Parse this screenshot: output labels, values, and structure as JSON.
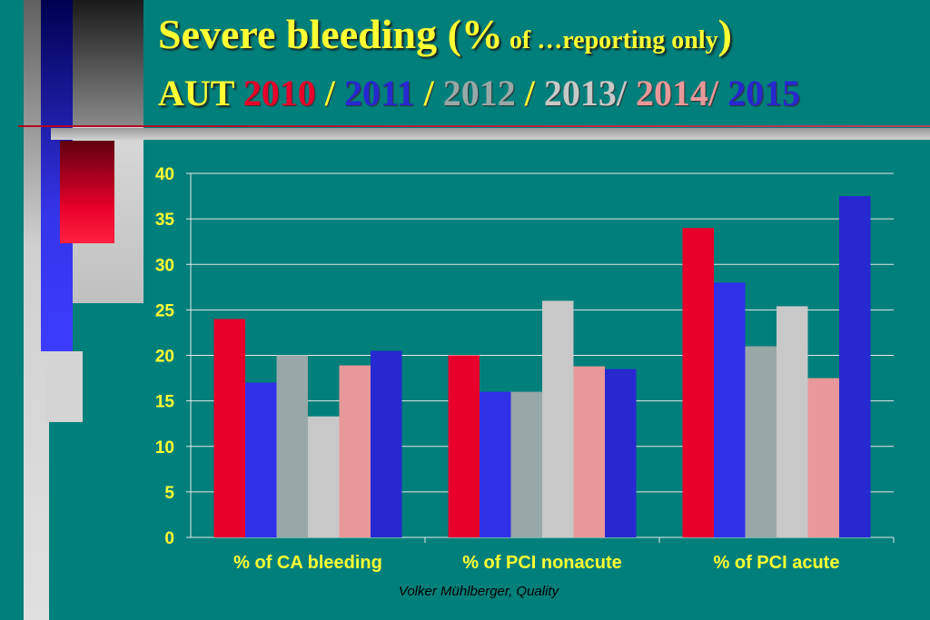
{
  "title": {
    "line1_main": "Severe  bleeding (%",
    "line1_small": " of …reporting only",
    "line1_close": ")",
    "line2_prefix": "AUT ",
    "years": [
      {
        "label": "2010",
        "color": "#e8002a"
      },
      {
        "label": " / ",
        "color": "#ffff33"
      },
      {
        "label": "2011",
        "color": "#2828d0"
      },
      {
        "label": " / ",
        "color": "#ffff33"
      },
      {
        "label": "2012",
        "color": "#98a8a8"
      },
      {
        "label": " / ",
        "color": "#ffff33"
      },
      {
        "label": "2013/",
        "color": "#c8c8c8"
      },
      {
        "label": " ",
        "color": "#ffff33"
      },
      {
        "label": "2014/",
        "color": "#e89898"
      },
      {
        "label": " ",
        "color": "#ffff33"
      },
      {
        "label": "2015",
        "color": "#2828d0"
      }
    ]
  },
  "footer": "Volker Mühlberger, Quality",
  "chart_data": {
    "type": "bar",
    "title": "",
    "xlabel": "",
    "ylabel": "",
    "ylim": [
      0,
      40
    ],
    "yticks": [
      0,
      5,
      10,
      15,
      20,
      25,
      30,
      35,
      40
    ],
    "grid": true,
    "categories": [
      "% of CA bleeding",
      "% of PCI nonacute",
      "% of PCI acute"
    ],
    "series": [
      {
        "name": "2010",
        "color": "#e8002a",
        "values": [
          24,
          20,
          34
        ]
      },
      {
        "name": "2011",
        "color": "#3030e8",
        "values": [
          17,
          16,
          28
        ]
      },
      {
        "name": "2012",
        "color": "#98a8a8",
        "values": [
          20,
          16,
          21
        ]
      },
      {
        "name": "2013",
        "color": "#c8c8c8",
        "values": [
          13.3,
          26,
          25.4
        ]
      },
      {
        "name": "2014",
        "color": "#e89898",
        "values": [
          18.9,
          18.8,
          17.5
        ]
      },
      {
        "name": "2015",
        "color": "#2828d0",
        "values": [
          20.5,
          18.5,
          37.5
        ]
      }
    ]
  }
}
